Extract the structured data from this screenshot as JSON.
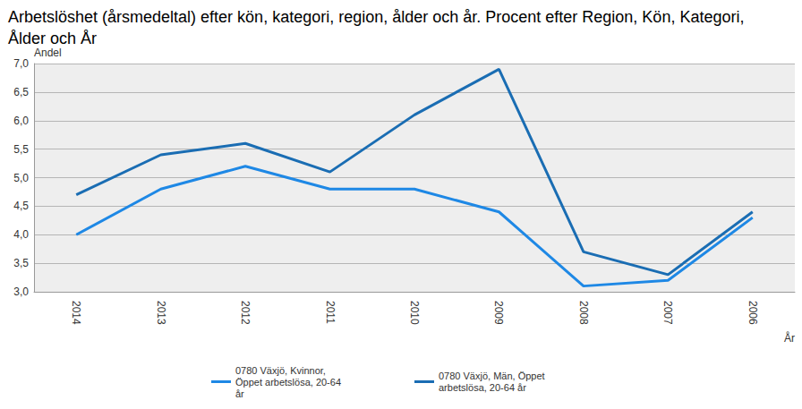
{
  "chart_data": {
    "type": "line",
    "title": "Arbetslöshet (årsmedeltal) efter kön, kategori, region, ålder och år. Procent efter Region, Kön, Kategori, Ålder och År",
    "x_label": "År",
    "y_label": "Andel",
    "categories": [
      "2014",
      "2013",
      "2012",
      "2011",
      "2010",
      "2009",
      "2008",
      "2007",
      "2006"
    ],
    "series": [
      {
        "name": "0780 Växjö, Kvinnor, Öppet arbetslösa, 20-64 år",
        "color": "#1e88e5",
        "values": [
          4.0,
          4.8,
          5.2,
          4.8,
          4.8,
          4.4,
          3.1,
          3.2,
          4.3
        ]
      },
      {
        "name": "0780 Växjö, Män, Öppet arbetslösa, 20-64 år",
        "color": "#1a6db3",
        "values": [
          4.7,
          5.4,
          5.6,
          5.1,
          6.1,
          6.9,
          3.7,
          3.3,
          4.4
        ]
      }
    ],
    "ylim": [
      3,
      7
    ],
    "yticks": [
      {
        "value": 3,
        "label": "3,0"
      },
      {
        "value": 3.5,
        "label": "3,5"
      },
      {
        "value": 4,
        "label": "4,0"
      },
      {
        "value": 4.5,
        "label": "4,5"
      },
      {
        "value": 5,
        "label": "5,0"
      },
      {
        "value": 5.5,
        "label": "5,5"
      },
      {
        "value": 6,
        "label": "6,0"
      },
      {
        "value": 6.5,
        "label": "6,5"
      },
      {
        "value": 7,
        "label": "7,0"
      }
    ],
    "grid": true,
    "legend": "bottom"
  }
}
